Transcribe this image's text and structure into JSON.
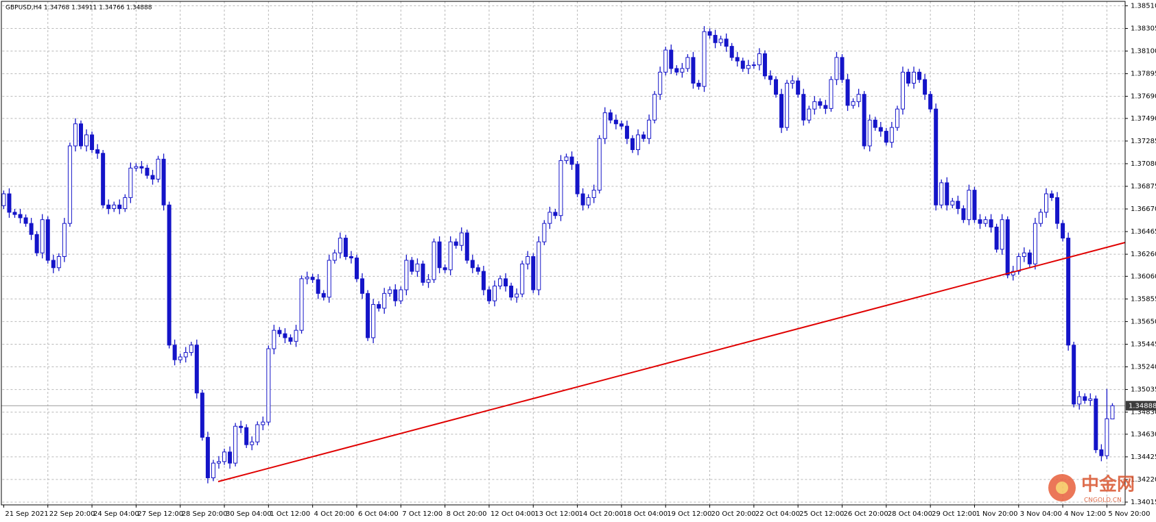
{
  "chart_data": {
    "type": "candlestick",
    "title": "GBPUSD,H4  1.34768 1.34911 1.34766 1.34888",
    "color": "#1414c8",
    "up_fill": "#ffffff",
    "grid": true,
    "last_price": 1.34888,
    "watermark": "中金网",
    "watermark_sub": "CNGOLD.CN",
    "ylim": [
      1.3399,
      1.3855
    ],
    "yticks": [
      {
        "value": 1.3851,
        "label": "1.38510"
      },
      1.38305,
      {
        "value": 1.381,
        "label": "1.38100"
      },
      1.37895,
      {
        "value": 1.3769,
        "label": "1.37690"
      },
      {
        "value": 1.3749,
        "label": "1.37490"
      },
      1.37285,
      {
        "value": 1.3708,
        "label": "1.37080"
      },
      1.36875,
      {
        "value": 1.3667,
        "label": "1.36670"
      },
      1.36465,
      {
        "value": 1.3626,
        "label": "1.36260"
      },
      {
        "value": 1.3606,
        "label": "1.36060"
      },
      1.35855,
      {
        "value": 1.3565,
        "label": "1.35650"
      },
      1.35445,
      {
        "value": 1.3524,
        "label": "1.35240"
      },
      1.35035,
      {
        "value": 1.3483,
        "label": "1.34830"
      },
      {
        "value": 1.3463,
        "label": "1.34630"
      },
      1.34425,
      {
        "value": 1.3422,
        "label": "1.34220"
      },
      1.34015
    ],
    "categories": [
      "21 Sep 2021",
      null,
      null,
      null,
      null,
      null,
      null,
      null,
      "22 Sep 20:00",
      null,
      null,
      null,
      null,
      null,
      null,
      null,
      "24 Sep 04:00",
      null,
      null,
      null,
      null,
      null,
      null,
      null,
      "27 Sep 12:00",
      null,
      null,
      null,
      null,
      null,
      null,
      null,
      "28 Sep 20:00",
      null,
      null,
      null,
      null,
      null,
      null,
      null,
      "30 Sep 04:00",
      null,
      null,
      null,
      null,
      null,
      null,
      null,
      "1 Oct 12:00",
      null,
      null,
      null,
      null,
      null,
      null,
      null,
      "4 Oct 20:00",
      null,
      null,
      null,
      null,
      null,
      null,
      null,
      "6 Oct 04:00",
      null,
      null,
      null,
      null,
      null,
      null,
      null,
      "7 Oct 12:00",
      null,
      null,
      null,
      null,
      null,
      null,
      null,
      "8 Oct 20:00",
      null,
      null,
      null,
      null,
      null,
      null,
      null,
      "12 Oct 04:00",
      null,
      null,
      null,
      null,
      null,
      null,
      null,
      "13 Oct 12:00",
      null,
      null,
      null,
      null,
      null,
      null,
      null,
      "14 Oct 20:00",
      null,
      null,
      null,
      null,
      null,
      null,
      null,
      "18 Oct 04:00",
      null,
      null,
      null,
      null,
      null,
      null,
      null,
      "19 Oct 12:00",
      null,
      null,
      null,
      null,
      null,
      null,
      null,
      "20 Oct 20:00",
      null,
      null,
      null,
      null,
      null,
      null,
      null,
      "22 Oct 04:00",
      null,
      null,
      null,
      null,
      null,
      null,
      null,
      "25 Oct 12:00",
      null,
      null,
      null,
      null,
      null,
      null,
      null,
      "26 Oct 20:00",
      null,
      null,
      null,
      null,
      null,
      null,
      null,
      "28 Oct 04:00",
      null,
      null,
      null,
      null,
      null,
      null,
      null,
      "29 Oct 12:00",
      null,
      null,
      null,
      null,
      null,
      null,
      null,
      "1 Nov 20:00",
      null,
      null,
      null,
      null,
      null,
      null,
      null,
      "3 Nov 04:00",
      null,
      null,
      null,
      null,
      null,
      null,
      null,
      "4 Nov 12:00",
      null,
      null,
      null,
      null,
      null,
      null,
      null,
      "5 Nov 20:00",
      null
    ],
    "open": [
      1.367,
      1.36807,
      1.3664,
      1.3662,
      1.3659,
      1.36539,
      1.36439,
      1.36272,
      1.36573,
      1.36205,
      1.36138,
      1.36239,
      1.36539,
      1.37241,
      1.37441,
      1.37241,
      1.37341,
      1.37207,
      1.37174,
      1.36706,
      1.36673,
      1.36706,
      1.36673,
      1.36773,
      1.3704,
      1.37054,
      1.3704,
      1.36974,
      1.3694,
      1.37121,
      1.36706,
      1.35437,
      1.35304,
      1.3533,
      1.3537,
      1.35437,
      1.35003,
      1.34602,
      1.34235,
      1.34368,
      1.34382,
      1.34469,
      1.34368,
      1.34702,
      1.3469,
      1.34535,
      1.3456,
      1.34716,
      1.3474,
      1.35404,
      1.35571,
      1.3554,
      1.35504,
      1.35471,
      1.35571,
      1.36038,
      1.36052,
      1.3603,
      1.35905,
      1.35871,
      1.36205,
      1.36272,
      1.36406,
      1.36239,
      1.36226,
      1.36038,
      1.35905,
      1.35504,
      1.35805,
      1.35771,
      1.35905,
      1.35938,
      1.35838,
      1.35938,
      1.36205,
      1.36105,
      1.36172,
      1.36005,
      1.3603,
      1.36372,
      1.36138,
      1.36119,
      1.36372,
      1.3634,
      1.36453,
      1.36205,
      1.36138,
      1.36105,
      1.35938,
      1.35838,
      1.35972,
      1.36038,
      1.35972,
      1.35871,
      1.359,
      1.36172,
      1.36239,
      1.35938,
      1.36372,
      1.36539,
      1.3664,
      1.3661,
      1.37108,
      1.37141,
      1.37074,
      1.36807,
      1.36706,
      1.36773,
      1.3684,
      1.37308,
      1.37541,
      1.37475,
      1.37441,
      1.3742,
      1.37308,
      1.37207,
      1.37341,
      1.37308,
      1.37475,
      1.37708,
      1.37909,
      1.38109,
      1.37942,
      1.37909,
      1.37942,
      1.38042,
      1.37809,
      1.3778,
      1.38276,
      1.38243,
      1.38176,
      1.38209,
      1.38143,
      1.38042,
      1.3801,
      1.37942,
      1.3797,
      1.37975,
      1.38076,
      1.37875,
      1.37842,
      1.37708,
      1.37408,
      1.37809,
      1.3783,
      1.37708,
      1.37475,
      1.37575,
      1.37642,
      1.37608,
      1.3758,
      1.37842,
      1.38042,
      1.37842,
      1.37608,
      1.37642,
      1.37708,
      1.37241,
      1.37475,
      1.37408,
      1.37374,
      1.37274,
      1.37408,
      1.37575,
      1.37909,
      1.37809,
      1.37909,
      1.37842,
      1.37708,
      1.37575,
      1.36706,
      1.36907,
      1.36706,
      1.3674,
      1.36673,
      1.36573,
      1.3684,
      1.36573,
      1.36539,
      1.36573,
      1.36506,
      1.36305,
      1.36573,
      1.36072,
      1.36105,
      1.36239,
      1.36272,
      1.36172,
      1.36539,
      1.3664,
      1.36807,
      1.36773,
      1.36539,
      1.36406,
      1.35437,
      1.34903,
      1.3497,
      1.34936,
      1.3495,
      1.34489,
      1.34435,
      1.34768
    ],
    "high": [
      1.36837,
      1.36857,
      1.3667,
      1.3667,
      1.3662,
      1.36589,
      1.36469,
      1.36623,
      1.36603,
      1.36255,
      1.36269,
      1.36589,
      1.37271,
      1.37491,
      1.37471,
      1.37391,
      1.37371,
      1.37257,
      1.37204,
      1.36756,
      1.36736,
      1.36756,
      1.36803,
      1.3709,
      1.37084,
      1.37104,
      1.3707,
      1.37024,
      1.37151,
      1.37171,
      1.36736,
      1.35487,
      1.3536,
      1.3542,
      1.35467,
      1.35487,
      1.35033,
      1.34652,
      1.34398,
      1.34432,
      1.34499,
      1.34519,
      1.34732,
      1.34752,
      1.3472,
      1.3461,
      1.34746,
      1.3479,
      1.35434,
      1.35621,
      1.35601,
      1.3559,
      1.35534,
      1.35621,
      1.36068,
      1.36102,
      1.36082,
      1.3608,
      1.35935,
      1.36255,
      1.36302,
      1.36456,
      1.36436,
      1.36289,
      1.36256,
      1.36088,
      1.35935,
      1.35855,
      1.35835,
      1.35955,
      1.35968,
      1.35988,
      1.35968,
      1.36255,
      1.36235,
      1.36222,
      1.36202,
      1.3608,
      1.36402,
      1.36422,
      1.36168,
      1.36422,
      1.36402,
      1.36503,
      1.36483,
      1.36255,
      1.36168,
      1.36155,
      1.35968,
      1.36022,
      1.36068,
      1.36088,
      1.36002,
      1.3595,
      1.36202,
      1.36289,
      1.36269,
      1.36422,
      1.36569,
      1.3669,
      1.3667,
      1.37158,
      1.37171,
      1.37191,
      1.37104,
      1.36857,
      1.36803,
      1.3689,
      1.37338,
      1.37591,
      1.37571,
      1.37525,
      1.37471,
      1.3747,
      1.37338,
      1.37391,
      1.37371,
      1.37525,
      1.37738,
      1.37959,
      1.38139,
      1.38159,
      1.37972,
      1.37992,
      1.38072,
      1.38092,
      1.37839,
      1.38326,
      1.38306,
      1.38293,
      1.38239,
      1.38259,
      1.38173,
      1.38092,
      1.3804,
      1.3802,
      1.38005,
      1.38126,
      1.38106,
      1.37925,
      1.37872,
      1.37758,
      1.37839,
      1.3788,
      1.3786,
      1.37758,
      1.37605,
      1.37692,
      1.37672,
      1.37658,
      1.37872,
      1.38092,
      1.38072,
      1.37892,
      1.37672,
      1.37758,
      1.37738,
      1.37525,
      1.37505,
      1.37458,
      1.37404,
      1.37458,
      1.37605,
      1.37959,
      1.37939,
      1.37959,
      1.37939,
      1.37892,
      1.37738,
      1.37625,
      1.36937,
      1.36957,
      1.3677,
      1.3679,
      1.36703,
      1.3689,
      1.3687,
      1.36623,
      1.36603,
      1.36623,
      1.36536,
      1.36623,
      1.36603,
      1.36155,
      1.36269,
      1.36322,
      1.36302,
      1.36589,
      1.3667,
      1.36857,
      1.36837,
      1.36823,
      1.36569,
      1.36456,
      1.35467,
      1.3502,
      1.35,
      1.35,
      1.3498,
      1.34539,
      1.3504,
      1.34911
    ],
    "low": [
      1.3667,
      1.3659,
      1.3659,
      1.3654,
      1.36509,
      1.36389,
      1.36242,
      1.36222,
      1.36175,
      1.36088,
      1.36108,
      1.36189,
      1.36509,
      1.37191,
      1.37211,
      1.37191,
      1.37177,
      1.37124,
      1.36676,
      1.36623,
      1.36643,
      1.36623,
      1.36643,
      1.36723,
      1.3701,
      1.3699,
      1.36944,
      1.3689,
      1.3691,
      1.36656,
      1.35407,
      1.35254,
      1.35274,
      1.3528,
      1.3534,
      1.34953,
      1.34572,
      1.34185,
      1.34205,
      1.34318,
      1.34352,
      1.34318,
      1.34338,
      1.3464,
      1.34505,
      1.34485,
      1.3453,
      1.34666,
      1.3471,
      1.35354,
      1.3551,
      1.35454,
      1.35441,
      1.35421,
      1.35541,
      1.35988,
      1.36,
      1.35855,
      1.35841,
      1.35821,
      1.36175,
      1.36222,
      1.36209,
      1.36176,
      1.36008,
      1.35855,
      1.35474,
      1.35454,
      1.35741,
      1.35721,
      1.35875,
      1.35788,
      1.35808,
      1.35888,
      1.36075,
      1.36055,
      1.35975,
      1.35955,
      1.36,
      1.36088,
      1.36089,
      1.36069,
      1.3631,
      1.3629,
      1.36175,
      1.36088,
      1.36075,
      1.35888,
      1.35808,
      1.35788,
      1.35942,
      1.35922,
      1.35841,
      1.35821,
      1.3587,
      1.36122,
      1.35908,
      1.35888,
      1.36342,
      1.36489,
      1.3658,
      1.3656,
      1.37078,
      1.37024,
      1.36777,
      1.36656,
      1.36676,
      1.36723,
      1.3681,
      1.37258,
      1.37445,
      1.37391,
      1.3739,
      1.37258,
      1.37177,
      1.37157,
      1.37278,
      1.37258,
      1.37445,
      1.37658,
      1.37879,
      1.37892,
      1.37879,
      1.37859,
      1.37912,
      1.37759,
      1.3775,
      1.3773,
      1.38213,
      1.38126,
      1.38146,
      1.38093,
      1.38012,
      1.3796,
      1.37912,
      1.37892,
      1.3794,
      1.37925,
      1.37845,
      1.37792,
      1.37678,
      1.37358,
      1.37378,
      1.37759,
      1.37678,
      1.37425,
      1.37445,
      1.37525,
      1.37578,
      1.3753,
      1.3755,
      1.37792,
      1.37812,
      1.37558,
      1.37578,
      1.37592,
      1.37211,
      1.37191,
      1.37378,
      1.37324,
      1.37244,
      1.37224,
      1.37378,
      1.37525,
      1.37779,
      1.37759,
      1.37812,
      1.37658,
      1.37545,
      1.36656,
      1.36676,
      1.36656,
      1.36676,
      1.36623,
      1.36543,
      1.36523,
      1.36543,
      1.36489,
      1.36509,
      1.36456,
      1.36275,
      1.36255,
      1.36042,
      1.36022,
      1.36075,
      1.36189,
      1.36142,
      1.36122,
      1.36509,
      1.3659,
      1.36743,
      1.36489,
      1.36376,
      1.35387,
      1.34873,
      1.34853,
      1.34906,
      1.34886,
      1.34459,
      1.34385,
      1.34405,
      1.34766
    ],
    "close": [
      1.36807,
      1.3664,
      1.3662,
      1.3659,
      1.36539,
      1.36439,
      1.36272,
      1.36573,
      1.36205,
      1.36138,
      1.36239,
      1.36539,
      1.37241,
      1.37441,
      1.37241,
      1.37341,
      1.37207,
      1.37174,
      1.36706,
      1.36673,
      1.36706,
      1.36673,
      1.36773,
      1.3704,
      1.37054,
      1.3704,
      1.36974,
      1.3694,
      1.37121,
      1.36706,
      1.35437,
      1.35304,
      1.3533,
      1.3537,
      1.35437,
      1.35003,
      1.34602,
      1.34235,
      1.34368,
      1.34382,
      1.34469,
      1.34368,
      1.34702,
      1.3469,
      1.34535,
      1.3456,
      1.34716,
      1.3474,
      1.35404,
      1.35571,
      1.3554,
      1.35504,
      1.35471,
      1.35571,
      1.36038,
      1.36052,
      1.3603,
      1.35905,
      1.35871,
      1.36205,
      1.36272,
      1.36406,
      1.36239,
      1.36226,
      1.36038,
      1.35905,
      1.35504,
      1.35805,
      1.35771,
      1.35905,
      1.35938,
      1.35838,
      1.35938,
      1.36205,
      1.36105,
      1.36172,
      1.36005,
      1.3603,
      1.36372,
      1.36138,
      1.36119,
      1.36372,
      1.3634,
      1.36453,
      1.36205,
      1.36138,
      1.36105,
      1.35938,
      1.35838,
      1.35972,
      1.36038,
      1.35972,
      1.35871,
      1.359,
      1.36172,
      1.36239,
      1.35938,
      1.36372,
      1.36539,
      1.3664,
      1.3661,
      1.37108,
      1.37141,
      1.37074,
      1.36807,
      1.36706,
      1.36773,
      1.3684,
      1.37308,
      1.37541,
      1.37475,
      1.37441,
      1.3742,
      1.37308,
      1.37207,
      1.37341,
      1.37308,
      1.37475,
      1.37708,
      1.37909,
      1.38109,
      1.37942,
      1.37909,
      1.37942,
      1.38042,
      1.37809,
      1.3778,
      1.38276,
      1.38243,
      1.38176,
      1.38209,
      1.38143,
      1.38042,
      1.3801,
      1.37942,
      1.3797,
      1.37975,
      1.38076,
      1.37875,
      1.37842,
      1.37708,
      1.37408,
      1.37809,
      1.3783,
      1.37708,
      1.37475,
      1.37575,
      1.37642,
      1.37608,
      1.3758,
      1.37842,
      1.38042,
      1.37842,
      1.37608,
      1.37642,
      1.37708,
      1.37241,
      1.37475,
      1.37408,
      1.37374,
      1.37274,
      1.37408,
      1.37575,
      1.37909,
      1.37809,
      1.37909,
      1.37842,
      1.37708,
      1.37575,
      1.36706,
      1.36907,
      1.36706,
      1.3674,
      1.36673,
      1.36573,
      1.3684,
      1.36573,
      1.36539,
      1.36573,
      1.36506,
      1.36305,
      1.36573,
      1.36072,
      1.36105,
      1.36239,
      1.36272,
      1.36172,
      1.36539,
      1.3664,
      1.36807,
      1.36773,
      1.36539,
      1.36406,
      1.35437,
      1.34903,
      1.3497,
      1.34936,
      1.3495,
      1.34489,
      1.34435,
      1.3477,
      1.34888
    ]
  }
}
